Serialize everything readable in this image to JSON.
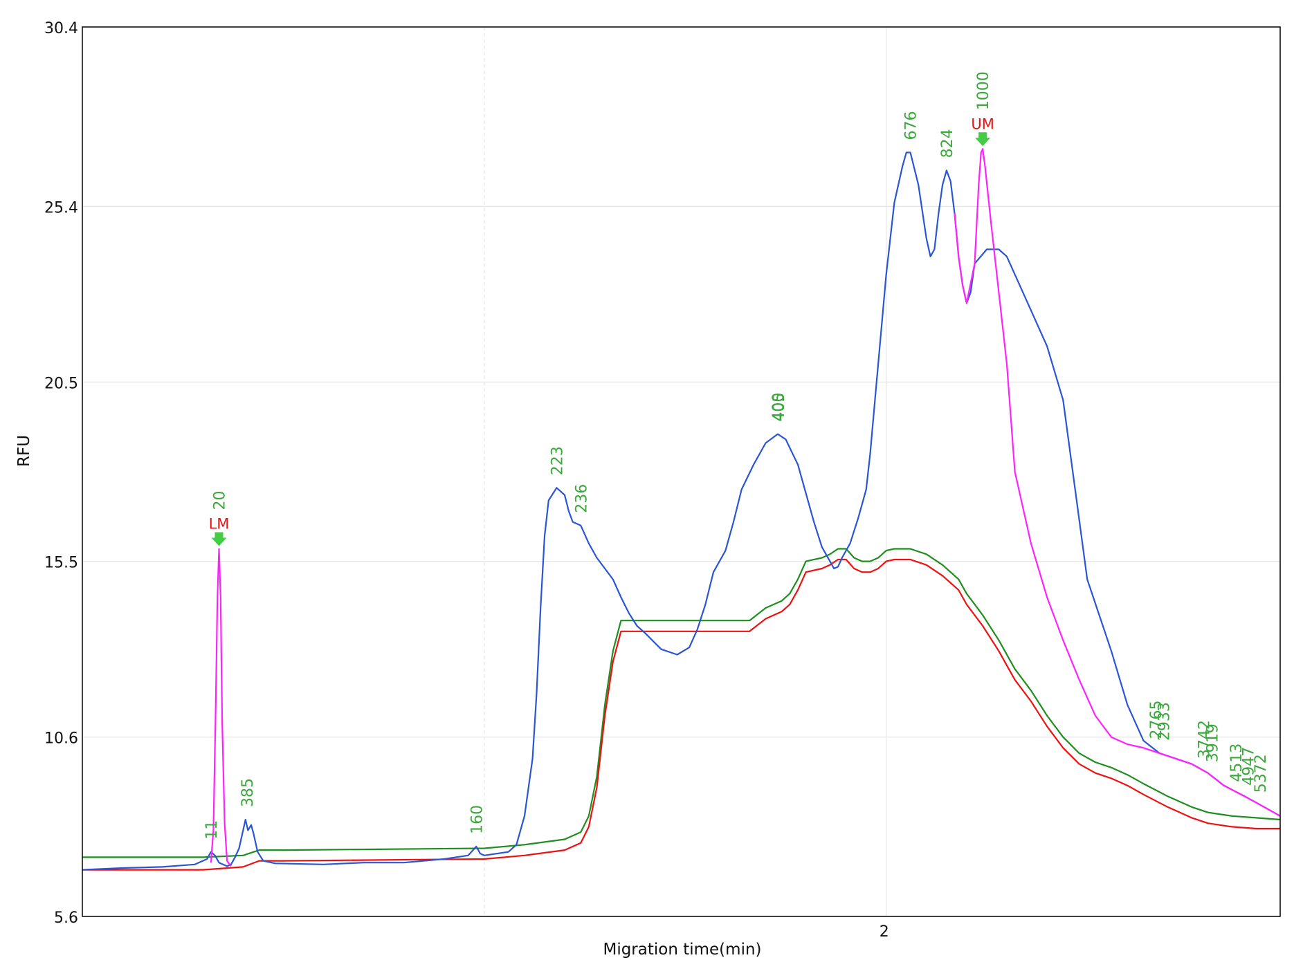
{
  "chart_data": {
    "type": "line",
    "xlabel": "Migration time(min)",
    "ylabel": "RFU",
    "xlim": [
      1.0,
      2.49
    ],
    "ylim": [
      5.6,
      30.4
    ],
    "x_ticks": [
      2
    ],
    "x_minor_grid": [
      1.5
    ],
    "y_ticks": [
      5.6,
      10.6,
      15.5,
      20.5,
      25.4,
      30.4
    ],
    "grid": true,
    "colors": {
      "sample": "#2a55d6",
      "marker_trace": "#ff22ff",
      "green_trace": "#1e8f1e",
      "red_trace": "#ee1111",
      "peak_label": "#3aa83a",
      "marker_label": "#ee1111",
      "arrow": "#44cc44",
      "grid": "#e6e6e6"
    },
    "series": [
      {
        "key": "sample",
        "points": [
          [
            1.0,
            6.9
          ],
          [
            1.05,
            6.95
          ],
          [
            1.1,
            6.98
          ],
          [
            1.14,
            7.05
          ],
          [
            1.155,
            7.2
          ],
          [
            1.16,
            7.4
          ],
          [
            1.165,
            7.3
          ],
          [
            1.17,
            7.1
          ],
          [
            1.18,
            7.0
          ],
          [
            1.185,
            7.05
          ],
          [
            1.19,
            7.25
          ],
          [
            1.195,
            7.5
          ],
          [
            1.2,
            8.0
          ],
          [
            1.203,
            8.3
          ],
          [
            1.206,
            8.0
          ],
          [
            1.21,
            8.15
          ],
          [
            1.213,
            7.9
          ],
          [
            1.218,
            7.4
          ],
          [
            1.225,
            7.15
          ],
          [
            1.24,
            7.08
          ],
          [
            1.3,
            7.05
          ],
          [
            1.35,
            7.1
          ],
          [
            1.4,
            7.1
          ],
          [
            1.45,
            7.2
          ],
          [
            1.48,
            7.3
          ],
          [
            1.49,
            7.55
          ],
          [
            1.495,
            7.35
          ],
          [
            1.5,
            7.3
          ],
          [
            1.53,
            7.4
          ],
          [
            1.54,
            7.6
          ],
          [
            1.55,
            8.4
          ],
          [
            1.56,
            10.0
          ],
          [
            1.565,
            11.8
          ],
          [
            1.57,
            14.2
          ],
          [
            1.575,
            16.2
          ],
          [
            1.58,
            17.2
          ],
          [
            1.59,
            17.55
          ],
          [
            1.6,
            17.35
          ],
          [
            1.605,
            16.9
          ],
          [
            1.61,
            16.6
          ],
          [
            1.62,
            16.5
          ],
          [
            1.63,
            16.0
          ],
          [
            1.64,
            15.6
          ],
          [
            1.66,
            15.0
          ],
          [
            1.67,
            14.5
          ],
          [
            1.68,
            14.05
          ],
          [
            1.69,
            13.7
          ],
          [
            1.7,
            13.5
          ],
          [
            1.72,
            13.05
          ],
          [
            1.74,
            12.9
          ],
          [
            1.755,
            13.1
          ],
          [
            1.765,
            13.6
          ],
          [
            1.775,
            14.3
          ],
          [
            1.785,
            15.2
          ],
          [
            1.8,
            15.8
          ],
          [
            1.81,
            16.6
          ],
          [
            1.82,
            17.5
          ],
          [
            1.835,
            18.2
          ],
          [
            1.85,
            18.8
          ],
          [
            1.865,
            19.05
          ],
          [
            1.875,
            18.9
          ],
          [
            1.89,
            18.2
          ],
          [
            1.9,
            17.4
          ],
          [
            1.91,
            16.6
          ],
          [
            1.92,
            15.9
          ],
          [
            1.93,
            15.5
          ],
          [
            1.935,
            15.3
          ],
          [
            1.94,
            15.35
          ],
          [
            1.945,
            15.6
          ],
          [
            1.955,
            16.0
          ],
          [
            1.965,
            16.7
          ],
          [
            1.975,
            17.5
          ],
          [
            1.98,
            18.5
          ],
          [
            1.99,
            21.0
          ],
          [
            2.0,
            23.5
          ],
          [
            2.01,
            25.5
          ],
          [
            2.02,
            26.5
          ],
          [
            2.025,
            26.9
          ],
          [
            2.03,
            26.9
          ],
          [
            2.04,
            26.0
          ],
          [
            2.05,
            24.5
          ],
          [
            2.055,
            24.0
          ],
          [
            2.06,
            24.2
          ],
          [
            2.065,
            25.2
          ],
          [
            2.07,
            26.0
          ],
          [
            2.075,
            26.4
          ],
          [
            2.08,
            26.1
          ],
          [
            2.085,
            25.2
          ],
          [
            2.09,
            24.0
          ],
          [
            2.095,
            23.2
          ],
          [
            2.1,
            22.7
          ],
          [
            2.105,
            23.0
          ],
          [
            2.11,
            23.8
          ],
          [
            2.125,
            24.2
          ],
          [
            2.14,
            24.2
          ],
          [
            2.15,
            24.0
          ],
          [
            2.16,
            23.5
          ],
          [
            2.18,
            22.5
          ],
          [
            2.2,
            21.5
          ],
          [
            2.22,
            20.0
          ],
          [
            2.25,
            15.0
          ],
          [
            2.28,
            13.0
          ],
          [
            2.3,
            11.5
          ],
          [
            2.32,
            10.5
          ],
          [
            2.34,
            10.15
          ],
          [
            2.36,
            10.0
          ],
          [
            2.38,
            9.85
          ],
          [
            2.4,
            9.6
          ],
          [
            2.42,
            9.25
          ],
          [
            2.45,
            8.9
          ],
          [
            2.47,
            8.65
          ],
          [
            2.49,
            8.4
          ]
        ]
      },
      {
        "key": "marker_trace",
        "points": [
          [
            1.16,
            7.1
          ],
          [
            1.163,
            8.0
          ],
          [
            1.166,
            11.5
          ],
          [
            1.168,
            14.5
          ],
          [
            1.17,
            15.85
          ],
          [
            1.172,
            14.5
          ],
          [
            1.174,
            11.0
          ],
          [
            1.177,
            8.2
          ],
          [
            1.18,
            7.15
          ],
          [
            1.185,
            7.0
          ],
          [
            2.085,
            25.2
          ],
          [
            2.09,
            24.0
          ],
          [
            2.095,
            23.2
          ],
          [
            2.1,
            22.7
          ],
          [
            2.11,
            23.8
          ],
          [
            2.115,
            26.0
          ],
          [
            2.118,
            26.9
          ],
          [
            2.12,
            27.0
          ],
          [
            2.123,
            26.5
          ],
          [
            2.13,
            25.0
          ],
          [
            2.14,
            23.0
          ],
          [
            2.15,
            21.0
          ],
          [
            2.16,
            18.0
          ],
          [
            2.18,
            16.0
          ],
          [
            2.2,
            14.5
          ],
          [
            2.22,
            13.3
          ],
          [
            2.24,
            12.2
          ],
          [
            2.26,
            11.2
          ],
          [
            2.28,
            10.6
          ],
          [
            2.3,
            10.4
          ],
          [
            2.32,
            10.3
          ],
          [
            2.34,
            10.15
          ],
          [
            2.36,
            10.0
          ],
          [
            2.38,
            9.85
          ],
          [
            2.4,
            9.6
          ],
          [
            2.42,
            9.25
          ],
          [
            2.45,
            8.9
          ],
          [
            2.47,
            8.65
          ],
          [
            2.49,
            8.4
          ]
        ]
      },
      {
        "key": "green_trace",
        "points": [
          [
            1.0,
            7.25
          ],
          [
            1.15,
            7.25
          ],
          [
            1.2,
            7.3
          ],
          [
            1.22,
            7.45
          ],
          [
            1.25,
            7.45
          ],
          [
            1.5,
            7.5
          ],
          [
            1.55,
            7.6
          ],
          [
            1.6,
            7.75
          ],
          [
            1.62,
            7.95
          ],
          [
            1.63,
            8.4
          ],
          [
            1.64,
            9.5
          ],
          [
            1.65,
            11.5
          ],
          [
            1.66,
            13.0
          ],
          [
            1.67,
            13.85
          ],
          [
            1.68,
            13.85
          ],
          [
            1.7,
            13.85
          ],
          [
            1.75,
            13.85
          ],
          [
            1.83,
            13.85
          ],
          [
            1.85,
            14.2
          ],
          [
            1.86,
            14.3
          ],
          [
            1.87,
            14.4
          ],
          [
            1.88,
            14.6
          ],
          [
            1.89,
            15.0
          ],
          [
            1.9,
            15.5
          ],
          [
            1.92,
            15.6
          ],
          [
            1.93,
            15.7
          ],
          [
            1.94,
            15.85
          ],
          [
            1.95,
            15.85
          ],
          [
            1.96,
            15.6
          ],
          [
            1.97,
            15.5
          ],
          [
            1.98,
            15.5
          ],
          [
            1.99,
            15.6
          ],
          [
            2.0,
            15.8
          ],
          [
            2.01,
            15.85
          ],
          [
            2.03,
            15.85
          ],
          [
            2.05,
            15.7
          ],
          [
            2.07,
            15.4
          ],
          [
            2.09,
            15.0
          ],
          [
            2.1,
            14.6
          ],
          [
            2.12,
            14.0
          ],
          [
            2.14,
            13.3
          ],
          [
            2.16,
            12.5
          ],
          [
            2.18,
            11.9
          ],
          [
            2.2,
            11.2
          ],
          [
            2.22,
            10.6
          ],
          [
            2.24,
            10.15
          ],
          [
            2.26,
            9.9
          ],
          [
            2.28,
            9.75
          ],
          [
            2.3,
            9.55
          ],
          [
            2.32,
            9.3
          ],
          [
            2.35,
            8.95
          ],
          [
            2.38,
            8.65
          ],
          [
            2.4,
            8.5
          ],
          [
            2.43,
            8.4
          ],
          [
            2.46,
            8.35
          ],
          [
            2.49,
            8.3
          ]
        ]
      },
      {
        "key": "red_trace",
        "points": [
          [
            1.0,
            6.9
          ],
          [
            1.15,
            6.9
          ],
          [
            1.2,
            6.98
          ],
          [
            1.22,
            7.15
          ],
          [
            1.25,
            7.15
          ],
          [
            1.5,
            7.2
          ],
          [
            1.55,
            7.3
          ],
          [
            1.6,
            7.45
          ],
          [
            1.62,
            7.65
          ],
          [
            1.63,
            8.1
          ],
          [
            1.64,
            9.2
          ],
          [
            1.65,
            11.2
          ],
          [
            1.66,
            12.7
          ],
          [
            1.67,
            13.55
          ],
          [
            1.68,
            13.55
          ],
          [
            1.7,
            13.55
          ],
          [
            1.75,
            13.55
          ],
          [
            1.83,
            13.55
          ],
          [
            1.85,
            13.9
          ],
          [
            1.86,
            14.0
          ],
          [
            1.87,
            14.1
          ],
          [
            1.88,
            14.3
          ],
          [
            1.89,
            14.7
          ],
          [
            1.9,
            15.2
          ],
          [
            1.92,
            15.3
          ],
          [
            1.93,
            15.4
          ],
          [
            1.94,
            15.55
          ],
          [
            1.95,
            15.55
          ],
          [
            1.96,
            15.3
          ],
          [
            1.97,
            15.2
          ],
          [
            1.98,
            15.2
          ],
          [
            1.99,
            15.3
          ],
          [
            2.0,
            15.5
          ],
          [
            2.01,
            15.55
          ],
          [
            2.03,
            15.55
          ],
          [
            2.05,
            15.4
          ],
          [
            2.07,
            15.1
          ],
          [
            2.09,
            14.7
          ],
          [
            2.1,
            14.3
          ],
          [
            2.12,
            13.7
          ],
          [
            2.14,
            13.0
          ],
          [
            2.16,
            12.2
          ],
          [
            2.18,
            11.6
          ],
          [
            2.2,
            10.9
          ],
          [
            2.22,
            10.3
          ],
          [
            2.24,
            9.85
          ],
          [
            2.26,
            9.6
          ],
          [
            2.28,
            9.45
          ],
          [
            2.3,
            9.25
          ],
          [
            2.32,
            9.0
          ],
          [
            2.35,
            8.65
          ],
          [
            2.38,
            8.35
          ],
          [
            2.4,
            8.2
          ],
          [
            2.43,
            8.1
          ],
          [
            2.46,
            8.05
          ],
          [
            2.49,
            8.05
          ]
        ]
      }
    ],
    "peak_labels": [
      {
        "text": "11",
        "x": 1.16,
        "y": 7.4
      },
      {
        "text": "20",
        "x": 1.17,
        "y": 15.85
      },
      {
        "text": "385",
        "x": 1.205,
        "y": 8.3
      },
      {
        "text": "160",
        "x": 1.49,
        "y": 7.55
      },
      {
        "text": "223",
        "x": 1.59,
        "y": 17.55
      },
      {
        "text": "236",
        "x": 1.62,
        "y": 16.5
      },
      {
        "text": "400",
        "x": 1.865,
        "y": 19.05
      },
      {
        "text": "405",
        "x": 1.866,
        "y": 19.05
      },
      {
        "text": "676",
        "x": 2.03,
        "y": 26.9
      },
      {
        "text": "824",
        "x": 2.075,
        "y": 26.4
      },
      {
        "text": "1000",
        "x": 2.12,
        "y": 27.0
      },
      {
        "text": "2765",
        "x": 2.335,
        "y": 10.2
      },
      {
        "text": "2933",
        "x": 2.345,
        "y": 10.15
      },
      {
        "text": "3742",
        "x": 2.395,
        "y": 9.65
      },
      {
        "text": "3919",
        "x": 2.405,
        "y": 9.55
      },
      {
        "text": "4513",
        "x": 2.435,
        "y": 9.0
      },
      {
        "text": "4947",
        "x": 2.45,
        "y": 8.9
      },
      {
        "text": "5372",
        "x": 2.465,
        "y": 8.7
      }
    ],
    "markers": [
      {
        "text": "LM",
        "x": 1.17,
        "y": 15.85
      },
      {
        "text": "UM",
        "x": 2.12,
        "y": 27.0
      }
    ]
  }
}
